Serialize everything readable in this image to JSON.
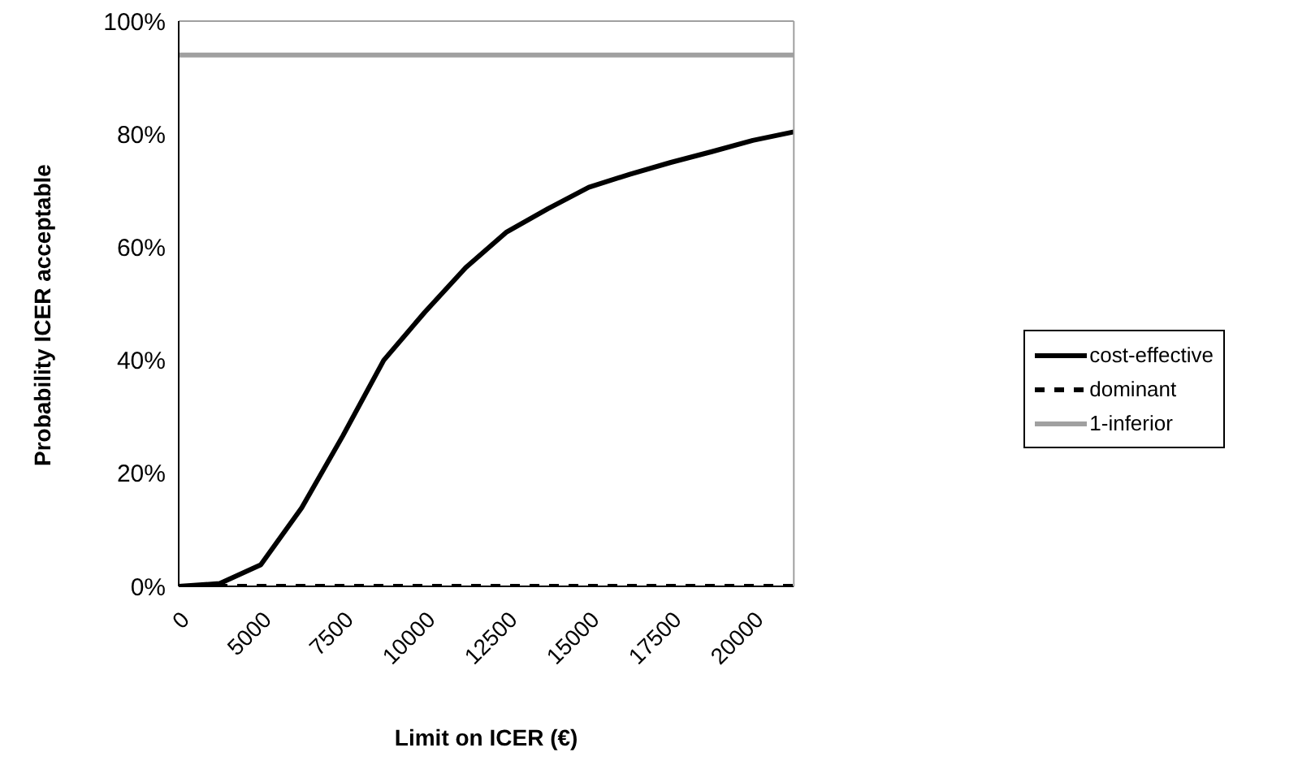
{
  "chart_data": {
    "type": "line",
    "xlabel": "Limit on ICER (€)",
    "ylabel": "Probability ICER acceptable",
    "categories": [
      "0",
      null,
      "5000",
      null,
      "7500",
      null,
      "10000",
      null,
      "12500",
      null,
      "15000",
      null,
      "17500",
      null,
      "20000",
      null
    ],
    "series": [
      {
        "name": "cost-effective",
        "color": "#000000",
        "line_style": "solid",
        "values": [
          0,
          0.5,
          3.8,
          13.9,
          26.6,
          40,
          48.5,
          56.4,
          62.7,
          66.8,
          70.6,
          72.9,
          75,
          76.9,
          78.9,
          80.4
        ]
      },
      {
        "name": "dominant",
        "color": "#000000",
        "line_style": "dashed",
        "values": [
          0,
          0,
          0,
          0,
          0,
          0,
          0,
          0,
          0,
          0,
          0,
          0,
          0,
          0,
          0,
          0
        ]
      },
      {
        "name": "1-inferior",
        "color": "#a0a0a0",
        "line_style": "solid",
        "values": [
          94,
          94,
          94,
          94,
          94,
          94,
          94,
          94,
          94,
          94,
          94,
          94,
          94,
          94,
          94,
          94
        ]
      }
    ],
    "ylim": [
      0,
      100
    ],
    "yticks": [
      {
        "value": 0,
        "label": "0%"
      },
      {
        "value": 20,
        "label": "20%"
      },
      {
        "value": 40,
        "label": "40%"
      },
      {
        "value": 60,
        "label": "60%"
      },
      {
        "value": 80,
        "label": "80%"
      },
      {
        "value": 100,
        "label": "100%"
      }
    ],
    "grid": false,
    "legend": "right",
    "marker": "none"
  }
}
